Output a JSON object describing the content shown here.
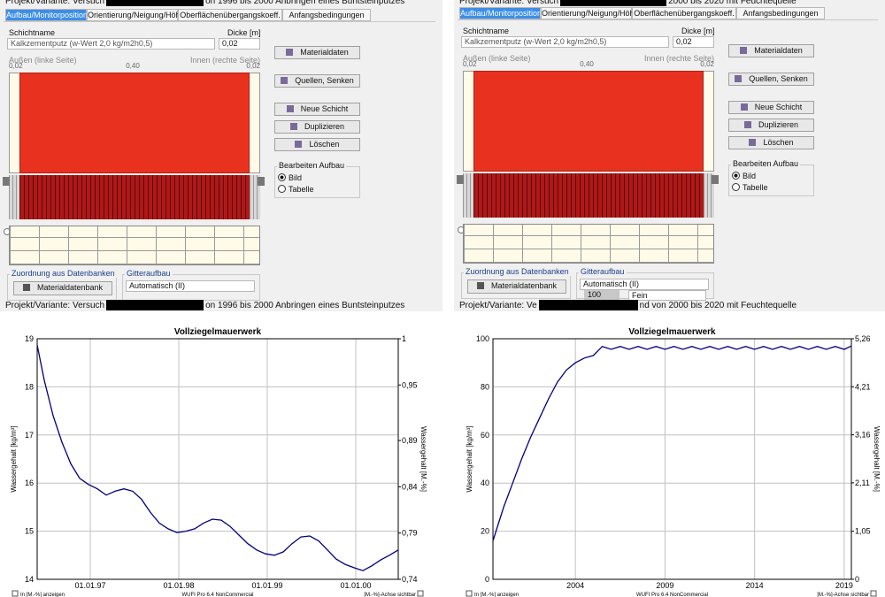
{
  "panels": [
    {
      "project_top": [
        "Projekt/Variante:  Versuch",
        "on 1996 bis 2000 Anbringen eines Buntsteinputzes"
      ],
      "tabs": [
        "Aufbau/Monitorpositionen",
        "Orientierung/Neigung/Höhe",
        "Oberflächenübergangskoeff.",
        "Anfangsbedingungen"
      ],
      "layer_name_label": "Schichtname",
      "layer_name": "Kalkzementputz (w-Wert 2,0 kg/m2h0,5)",
      "thickness_label": "Dicke [m]",
      "thickness": "0,02",
      "outside_label": "Außen (linke Seite)",
      "inside_label": "Innen (rechte Seite)",
      "scale": [
        "0,02",
        "0,40",
        "0,02"
      ],
      "buttons": [
        "Materialdaten",
        "Quellen, Senken",
        "Neue Schicht",
        "Duplizieren",
        "Löschen"
      ],
      "edit_group": "Bearbeiten Aufbau",
      "edit_options": [
        "Bild",
        "Tabelle"
      ],
      "edit_selected": 0,
      "db_group": "Zuordnung aus Datenbanken",
      "db_button": "Materialdatenbank",
      "grid_group": "Gitteraufbau",
      "grid_select": "Automatisch (II)",
      "project": [
        "Projekt/Variante:  Versuch",
        "on 1996 bis 2000 Anbringen eines Buntsteinputzes"
      ],
      "chart": {
        "type": "line",
        "title": "Vollziegelmauerwerk",
        "ylabel": "Wassergehalt [kg/m³]",
        "y2label": "Wassergehalt [M.-%]",
        "x": [
          1996.4,
          1996.48,
          1996.58,
          1996.68,
          1996.78,
          1996.88,
          1996.98,
          1997.08,
          1997.18,
          1997.28,
          1997.38,
          1997.48,
          1997.58,
          1997.68,
          1997.78,
          1997.88,
          1997.98,
          1998.08,
          1998.18,
          1998.28,
          1998.38,
          1998.48,
          1998.58,
          1998.68,
          1998.78,
          1998.88,
          1998.98,
          1999.08,
          1999.18,
          1999.28,
          1999.38,
          1999.48,
          1999.58,
          1999.68,
          1999.78,
          1999.88,
          1999.98,
          2000.08,
          2000.18,
          2000.28,
          2000.38,
          2000.48
        ],
        "series": [
          {
            "color": "#000080",
            "values": [
              18.87,
              18.14,
              17.4,
              16.85,
              16.4,
              16.1,
              15.97,
              15.88,
              15.75,
              15.83,
              15.88,
              15.83,
              15.66,
              15.39,
              15.17,
              15.05,
              14.97,
              15.0,
              15.05,
              15.17,
              15.25,
              15.23,
              15.1,
              14.92,
              14.74,
              14.61,
              14.53,
              14.5,
              14.57,
              14.74,
              14.88,
              14.9,
              14.8,
              14.61,
              14.42,
              14.31,
              14.24,
              14.18,
              14.28,
              14.4,
              14.5,
              14.61
            ]
          }
        ],
        "xlim": [
          1996.4,
          2000.48
        ],
        "xticks": [
          {
            "value": 1997,
            "label": "01.01.97"
          },
          {
            "value": 1998,
            "label": "01.01.98"
          },
          {
            "value": 1999,
            "label": "01.01.99"
          },
          {
            "value": 2000,
            "label": "01.01.00"
          }
        ],
        "ylim": [
          14,
          19
        ],
        "yticks": [
          14,
          15,
          16,
          17,
          18,
          19
        ],
        "y2lim": [
          0.74,
          1
        ],
        "y2ticks": [
          {
            "value": 0.74,
            "label": "0,74"
          },
          {
            "value": 0.79,
            "label": "0,79"
          },
          {
            "value": 0.84,
            "label": "0,84"
          },
          {
            "value": 0.89,
            "label": "0,89"
          },
          {
            "value": 0.95,
            "label": "0,95"
          },
          1
        ],
        "grid": true
      },
      "footer": [
        "In [M.-%] anzeigen",
        "WUFI Pro 6.4 NonCommercial",
        "[M.-%]-Achse sichtbar"
      ]
    },
    {
      "project_top": [
        "Projekt/Variante:  Versuch",
        "2000 bis 2020 mit Feuchtequelle"
      ],
      "tabs": [
        "Aufbau/Monitorpositionen",
        "Orientierung/Neigung/Höhe",
        "Oberflächenübergangskoeff.",
        "Anfangsbedingungen"
      ],
      "layer_name_label": "Schichtname",
      "layer_name": "Kalkzementputz (w-Wert 2,0 kg/m2h0,5)",
      "thickness_label": "Dicke [m]",
      "thickness": "0,02",
      "outside_label": "Außen (linke Seite)",
      "inside_label": "Innen (rechte Seite)",
      "scale": [
        "0,02",
        "0,40",
        "0,02"
      ],
      "buttons": [
        "Materialdaten",
        "Quellen, Senken",
        "Neue Schicht",
        "Duplizieren",
        "Löschen"
      ],
      "edit_group": "Bearbeiten Aufbau",
      "edit_options": [
        "Bild",
        "Tabelle"
      ],
      "edit_selected": 0,
      "db_group": "Zuordnung aus Datenbanken",
      "db_button": "Materialdatenbank",
      "grid_group": "Gitteraufbau",
      "grid_select": "Automatisch (II)",
      "fine_value": "100",
      "fine_select": "Fein",
      "project": [
        "Projekt/Variante:  Ve",
        "nd von 2000 bis 2020 mit Feuchtequelle"
      ],
      "chart": {
        "type": "line",
        "title": "Vollziegelmauerwerk",
        "ylabel": "Wassergehalt [kg/m³]",
        "y2label": "Wassergehalt [M.-%]",
        "x": [
          1999.4,
          2000,
          2000.5,
          2001,
          2001.5,
          2002,
          2002.5,
          2003,
          2003.5,
          2004,
          2004.5,
          2005,
          2005.5,
          2006,
          2006.5,
          2007,
          2007.5,
          2008,
          2008.5,
          2009,
          2009.5,
          2010,
          2010.5,
          2011,
          2011.5,
          2012,
          2012.5,
          2013,
          2013.5,
          2014,
          2014.5,
          2015,
          2015.5,
          2016,
          2016.5,
          2017,
          2017.5,
          2018,
          2018.5,
          2019,
          2019.4
        ],
        "series": [
          {
            "color": "#000080",
            "values": [
              16,
              30,
              40,
              50,
              59,
              67,
              75,
              82,
              87,
              90,
              92,
              93,
              96.8,
              95.6,
              96.8,
              95.6,
              96.8,
              95.6,
              96.8,
              95.6,
              96.8,
              95.6,
              96.8,
              95.6,
              96.8,
              95.6,
              96.8,
              95.6,
              96.8,
              95.6,
              96.8,
              95.6,
              96.8,
              95.6,
              96.8,
              95.6,
              96.8,
              95.6,
              96.8,
              95.6,
              97
            ]
          }
        ],
        "xlim": [
          1999.4,
          2019.4
        ],
        "xticks": [
          2004,
          2009,
          2014,
          2019
        ],
        "ylim": [
          0,
          100
        ],
        "yticks": [
          0,
          20,
          40,
          60,
          80,
          100
        ],
        "y2lim": [
          0,
          5.26
        ],
        "y2ticks": [
          0,
          {
            "value": 1.05,
            "label": "1,05"
          },
          {
            "value": 2.11,
            "label": "2,11"
          },
          {
            "value": 3.16,
            "label": "3,16"
          },
          {
            "value": 4.21,
            "label": "4,21"
          },
          {
            "value": 5.26,
            "label": "5,26"
          }
        ],
        "grid": true
      },
      "footer": [
        "In [M.-%] anzeigen",
        "WUFI Pro 6.4 NonCommercial",
        "[M.-%]-Achse sichtbar"
      ]
    }
  ]
}
